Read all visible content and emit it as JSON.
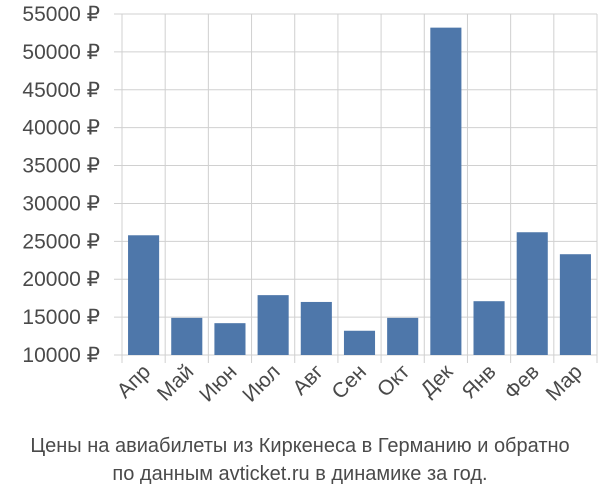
{
  "chart_data": {
    "type": "bar",
    "title": "",
    "xlabel": "",
    "ylabel": "",
    "categories": [
      "Апр",
      "Май",
      "Июн",
      "Июл",
      "Авг",
      "Сен",
      "Окт",
      "Дек",
      "Янв",
      "Фев",
      "Мар"
    ],
    "values": [
      25800,
      14900,
      14200,
      17900,
      17000,
      13200,
      14900,
      53200,
      17100,
      26200,
      23300
    ],
    "ylim": [
      10000,
      55000
    ],
    "yticks": [
      10000,
      15000,
      20000,
      25000,
      30000,
      35000,
      40000,
      45000,
      50000,
      55000
    ],
    "ytick_labels": [
      "10000 ₽",
      "15000 ₽",
      "20000 ₽",
      "25000 ₽",
      "30000 ₽",
      "35000 ₽",
      "40000 ₽",
      "45000 ₽",
      "50000 ₽",
      "55000 ₽"
    ],
    "grid": true,
    "bar_color": "#4e77aa",
    "grid_color": "#d0d0d0"
  },
  "caption": {
    "line1": "Цены на авиабилеты из Киркенеса в Германию и обратно",
    "line2": "по данным avticket.ru в динамике за год."
  }
}
